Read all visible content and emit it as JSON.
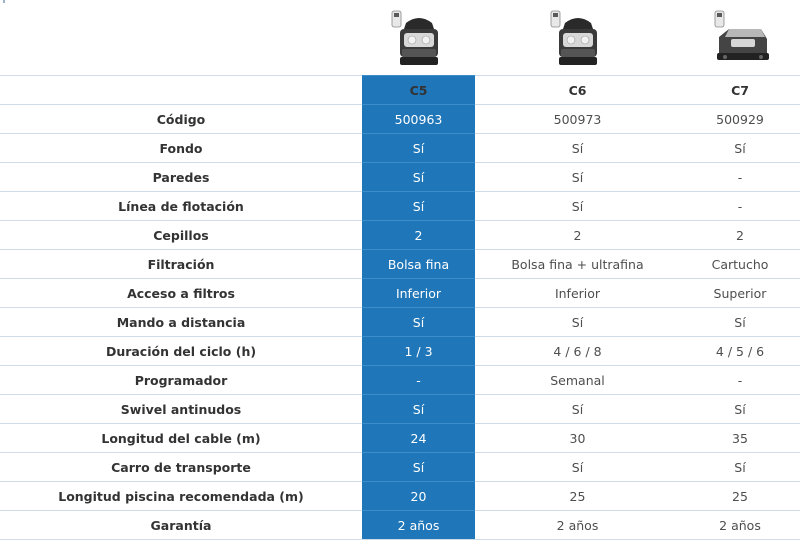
{
  "products": [
    {
      "name": "C5",
      "image_icon": "pool-robot-c5-icon",
      "highlighted": true
    },
    {
      "name": "C6",
      "image_icon": "pool-robot-c6-icon",
      "highlighted": false
    },
    {
      "name": "C7",
      "image_icon": "pool-robot-c7-icon",
      "highlighted": false
    }
  ],
  "rows": [
    {
      "label": "Código",
      "values": [
        "500963",
        "500973",
        "500929"
      ]
    },
    {
      "label": "Fondo",
      "values": [
        "Sí",
        "Sí",
        "Sí"
      ]
    },
    {
      "label": "Paredes",
      "values": [
        "Sí",
        "Sí",
        "-"
      ]
    },
    {
      "label": "Línea de flotación",
      "values": [
        "Sí",
        "Sí",
        "-"
      ]
    },
    {
      "label": "Cepillos",
      "values": [
        "2",
        "2",
        "2"
      ]
    },
    {
      "label": "Filtración",
      "values": [
        "Bolsa fina",
        "Bolsa fina + ultrafina",
        "Cartucho"
      ]
    },
    {
      "label": "Acceso a filtros",
      "values": [
        "Inferior",
        "Inferior",
        "Superior"
      ]
    },
    {
      "label": "Mando a distancia",
      "values": [
        "Sí",
        "Sí",
        "Sí"
      ]
    },
    {
      "label": "Duración del ciclo (h)",
      "values": [
        "1 / 3",
        "4 / 6 / 8",
        "4 / 5 / 6"
      ]
    },
    {
      "label": "Programador",
      "values": [
        "-",
        "Semanal",
        "-"
      ]
    },
    {
      "label": "Swivel antinudos",
      "values": [
        "Sí",
        "Sí",
        "Sí"
      ]
    },
    {
      "label": "Longitud del cable (m)",
      "values": [
        "24",
        "30",
        "35"
      ]
    },
    {
      "label": "Carro de transporte",
      "values": [
        "Sí",
        "Sí",
        "Sí"
      ]
    },
    {
      "label": "Longitud piscina recomendada (m)",
      "values": [
        "20",
        "25",
        "25"
      ]
    },
    {
      "label": "Garantía",
      "values": [
        "2 años",
        "2 años",
        "2 años"
      ]
    }
  ],
  "colors": {
    "highlight": "#1f76b8",
    "grid": "#cfdbe6",
    "text": "#4e4e4e"
  }
}
